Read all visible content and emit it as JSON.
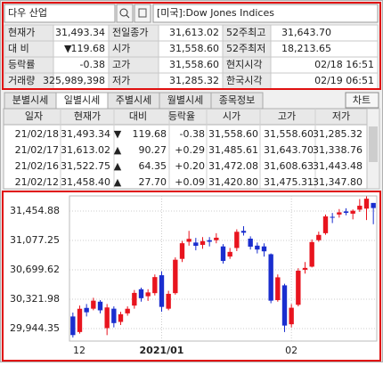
{
  "search": {
    "query": "다우 산업",
    "market": "[미국]:Dow Jones Indices"
  },
  "quote": {
    "change_arrow": "▼",
    "rows": [
      [
        "현재가",
        "31,493.34",
        "전일종가",
        "31,613.02",
        "52주최고",
        "31,643.70"
      ],
      [
        "대 비",
        "119.68",
        "시가",
        "31,558.60",
        "52주최저",
        "18,213.65"
      ],
      [
        "등락률",
        "-0.38",
        "고가",
        "31,558.60",
        "현지시각",
        "02/18 16:51"
      ],
      [
        "거래량",
        "325,989,398",
        "저가",
        "31,285.32",
        "한국시각",
        "02/19 06:51"
      ]
    ]
  },
  "daily": {
    "tabs": [
      "분별시세",
      "일별시세",
      "주별시세",
      "월별시세",
      "종목정보"
    ],
    "chart_button": "차트",
    "headers": [
      "일자",
      "현재가",
      "대비",
      "등락율",
      "시가",
      "고가",
      "저가"
    ],
    "rows": [
      [
        "21/02/18",
        "31,493.34",
        "▼",
        "119.68",
        "-0.38",
        "31,558.60",
        "31,558.60",
        "31,285.32"
      ],
      [
        "21/02/17",
        "31,613.02",
        "▲",
        "90.27",
        "+0.29",
        "31,485.61",
        "31,643.70",
        "31,338.76"
      ],
      [
        "21/02/16",
        "31,522.75",
        "▲",
        "64.35",
        "+0.20",
        "31,472.08",
        "31,608.63",
        "31,443.48"
      ],
      [
        "21/02/12",
        "31,458.40",
        "▲",
        "27.70",
        "+0.09",
        "31,420.80",
        "31,475.31",
        "31,347.80"
      ]
    ]
  },
  "chart_data": {
    "type": "candlestick",
    "up_color": "#e8141e",
    "down_color": "#1a2ecf",
    "grid": true,
    "categories": [
      "12",
      null,
      null,
      null,
      null,
      null,
      null,
      null,
      null,
      null,
      null,
      null,
      null,
      "2021/01",
      null,
      null,
      null,
      null,
      null,
      null,
      null,
      null,
      null,
      null,
      null,
      null,
      null,
      null,
      null,
      null,
      null,
      null,
      "02",
      null,
      null,
      null,
      null,
      null,
      null,
      null,
      null,
      null,
      null,
      null,
      null
    ],
    "open": [
      30100,
      29900,
      30210,
      30200,
      30290,
      29950,
      30200,
      30030,
      30140,
      30240,
      30450,
      30360,
      30400,
      30630,
      30200,
      30400,
      30840,
      31060,
      31050,
      31020,
      31080,
      31080,
      31000,
      30870,
      30980,
      31200,
      31100,
      31010,
      31000,
      30900,
      30310,
      30500,
      30000,
      30250,
      30700,
      30740,
      31080,
      31170,
      31380,
      31410,
      31450,
      31420.8,
      31472.08,
      31485.61,
      31558.6
    ],
    "high": [
      30150,
      30240,
      30260,
      30340,
      30310,
      30260,
      30230,
      30160,
      30230,
      30440,
      30470,
      30450,
      30640,
      30680,
      30430,
      30860,
      31070,
      31200,
      31110,
      31120,
      31120,
      31170,
      31030,
      30980,
      31220,
      31260,
      31130,
      31050,
      31040,
      30910,
      30640,
      30520,
      30260,
      30720,
      30800,
      31090,
      31190,
      31410,
      31430,
      31480,
      31490,
      31475.31,
      31608.63,
      31643.7,
      31558.6
    ],
    "low": [
      29830,
      29880,
      30100,
      30180,
      30140,
      29860,
      29960,
      29990,
      30110,
      30200,
      30290,
      30300,
      30370,
      30160,
      30180,
      30380,
      30800,
      31010,
      30950,
      30970,
      31000,
      31040,
      30780,
      30840,
      30940,
      31140,
      30960,
      30910,
      30870,
      30270,
      30290,
      29900,
      29960,
      30230,
      30650,
      30730,
      31060,
      31150,
      31300,
      31370,
      31400,
      31347.8,
      31443.48,
      31338.76,
      31285.32
    ],
    "close": [
      29861,
      30199,
      30154,
      30303,
      30179,
      30216,
      30015,
      30129,
      30199,
      30403,
      30335,
      30409,
      30606,
      30223,
      30391,
      30829,
      31041,
      31097,
      31008,
      31068,
      31060,
      31112,
      30814,
      30930,
      31188,
      31176,
      30997,
      30960,
      30937,
      30303,
      30603,
      29983,
      30212,
      30688,
      30724,
      31056,
      31148,
      31386,
      31375,
      31438,
      31431,
      31458.4,
      31522.75,
      31613.02,
      31493.34
    ],
    "ylim": [
      29784,
      31649
    ],
    "yticks": [
      {
        "value": 31454.88,
        "label": "31,454.88"
      },
      {
        "value": 31077.25,
        "label": "31,077.25"
      },
      {
        "value": 30699.62,
        "label": "30,699.62"
      },
      {
        "value": 30321.98,
        "label": "30,321.98"
      },
      {
        "value": 29944.35,
        "label": "29,944.35"
      }
    ]
  }
}
